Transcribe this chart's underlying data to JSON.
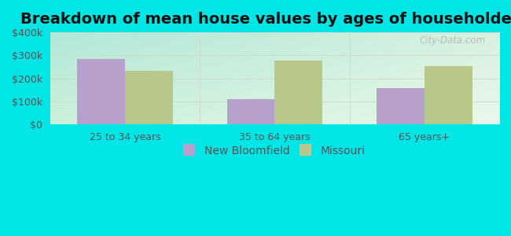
{
  "title": "Breakdown of mean house values by ages of householders",
  "categories": [
    "25 to 34 years",
    "35 to 64 years",
    "65 years+"
  ],
  "new_bloomfield": [
    285000,
    110000,
    157000
  ],
  "missouri": [
    232000,
    278000,
    252000
  ],
  "bar_color_nb": "#b8a0cc",
  "bar_color_mo": "#b8c88a",
  "ylim": [
    0,
    400000
  ],
  "yticks": [
    0,
    100000,
    200000,
    300000,
    400000
  ],
  "ytick_labels": [
    "$0",
    "$100k",
    "$200k",
    "$300k",
    "$400k"
  ],
  "legend_nb": "New Bloomfield",
  "legend_mo": "Missouri",
  "background_color": "#00e5e5",
  "title_fontsize": 14,
  "tick_fontsize": 9,
  "legend_fontsize": 10,
  "bar_width": 0.32,
  "watermark": "City-Data.com",
  "tick_color": "#555555",
  "grid_color": "#ccddcc",
  "plot_bg_left": "#b0e8d8",
  "plot_bg_right": "#e8f5e0",
  "plot_bg_top": "#d0eee0",
  "plot_bg_bottom": "#eaf8ea"
}
